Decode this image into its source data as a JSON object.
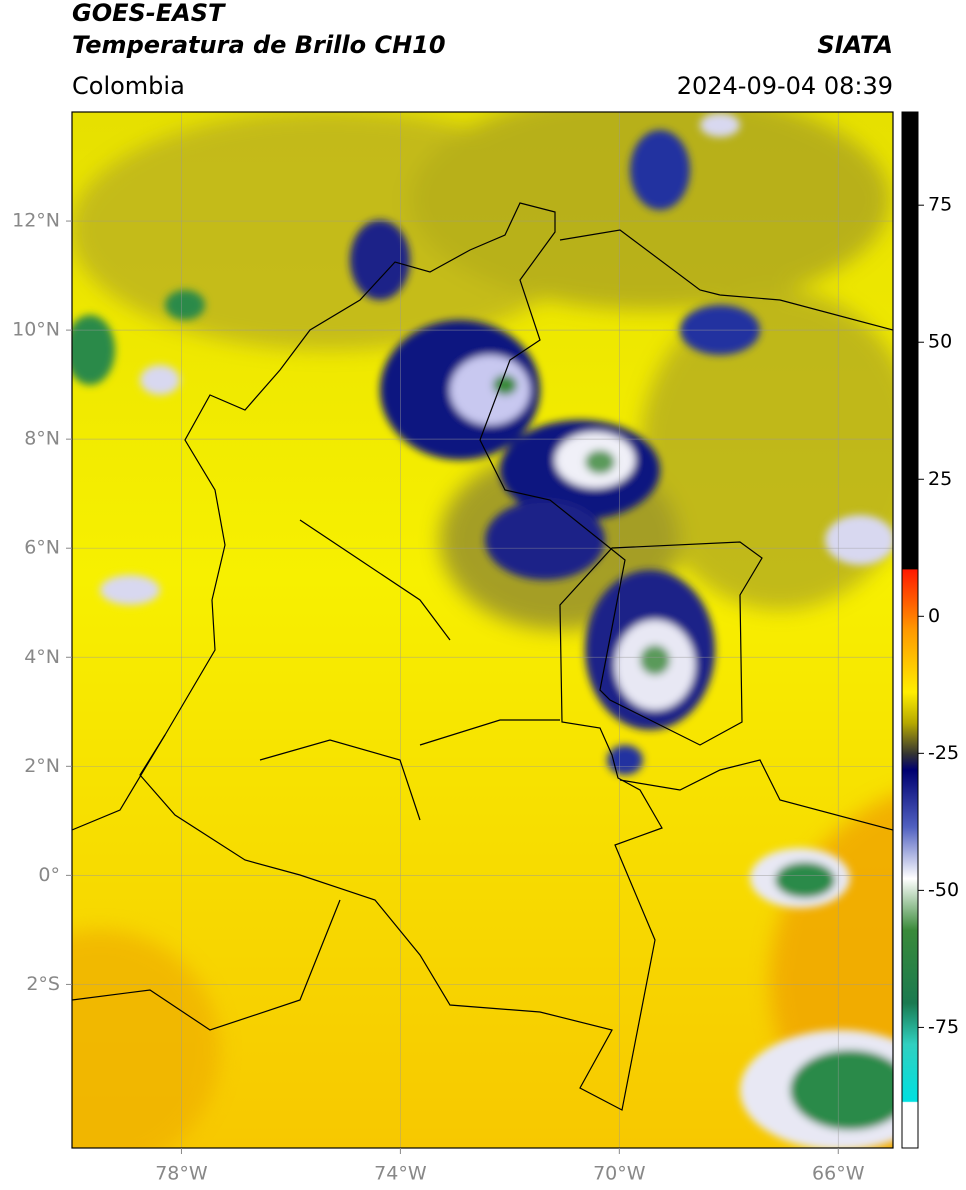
{
  "header": {
    "satellite": "GOES-EAST",
    "product": "Temperatura de Brillo CH10",
    "agency": "SIATA",
    "region": "Colombia",
    "datetime": "2024-09-04 08:39"
  },
  "map": {
    "lon_range": [
      -80,
      -65
    ],
    "lat_range": [
      -5,
      14
    ],
    "lon_ticks": [
      {
        "value": -78,
        "label": "78°W"
      },
      {
        "value": -74,
        "label": "74°W"
      },
      {
        "value": -70,
        "label": "70°W"
      },
      {
        "value": -66,
        "label": "66°W"
      }
    ],
    "lat_ticks": [
      {
        "value": 12,
        "label": "12°N"
      },
      {
        "value": 10,
        "label": "10°N"
      },
      {
        "value": 8,
        "label": "8°N"
      },
      {
        "value": 6,
        "label": "6°N"
      },
      {
        "value": 4,
        "label": "4°N"
      },
      {
        "value": 2,
        "label": "2°N"
      },
      {
        "value": 0,
        "label": "0°"
      },
      {
        "value": -2,
        "label": "2°S"
      }
    ]
  },
  "colorbar": {
    "range": [
      -97,
      92
    ],
    "ticks": [
      75,
      50,
      25,
      0,
      -25,
      -50,
      -75
    ]
  }
}
